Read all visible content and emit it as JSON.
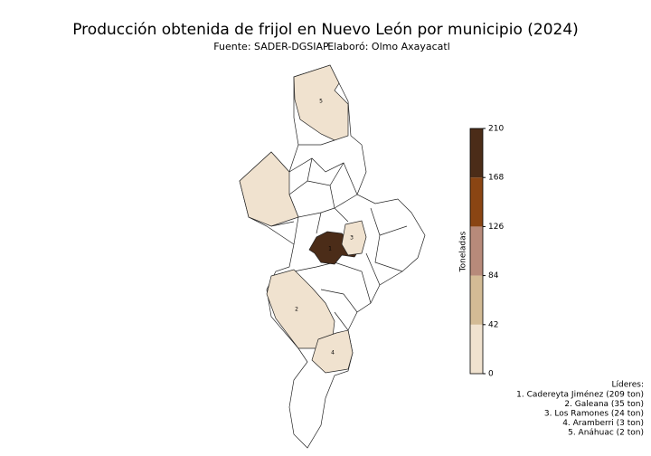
{
  "title": "Producción obtenida de frijol en Nuevo León por municipio (2024)",
  "subtitle": {
    "source": "Fuente: SADER-DGSIAP",
    "author": "Elaboró: Olmo Axayacatl"
  },
  "colorbar": {
    "label": "Toneladas",
    "lim": [
      0,
      210
    ],
    "ticks": [
      0,
      42,
      84,
      126,
      168,
      210
    ],
    "colors": [
      "#f0e2cf",
      "#d3bb95",
      "#b78a7a",
      "#8a4513",
      "#4b2c18"
    ]
  },
  "regions": [
    {
      "label": "1",
      "value": 209
    },
    {
      "label": "2",
      "value": 35
    },
    {
      "label": "3",
      "value": 24
    },
    {
      "label": "4",
      "value": 3
    },
    {
      "label": "5",
      "value": 2
    }
  ],
  "leaders": {
    "title": "Líderes:",
    "items": [
      "1. Cadereyta Jiménez (209 ton)",
      "2. Galeana (35 ton)",
      "3. Los Ramones (24 ton)",
      "4. Aramberri (3 ton)",
      "5. Anáhuac (2 ton)"
    ]
  }
}
